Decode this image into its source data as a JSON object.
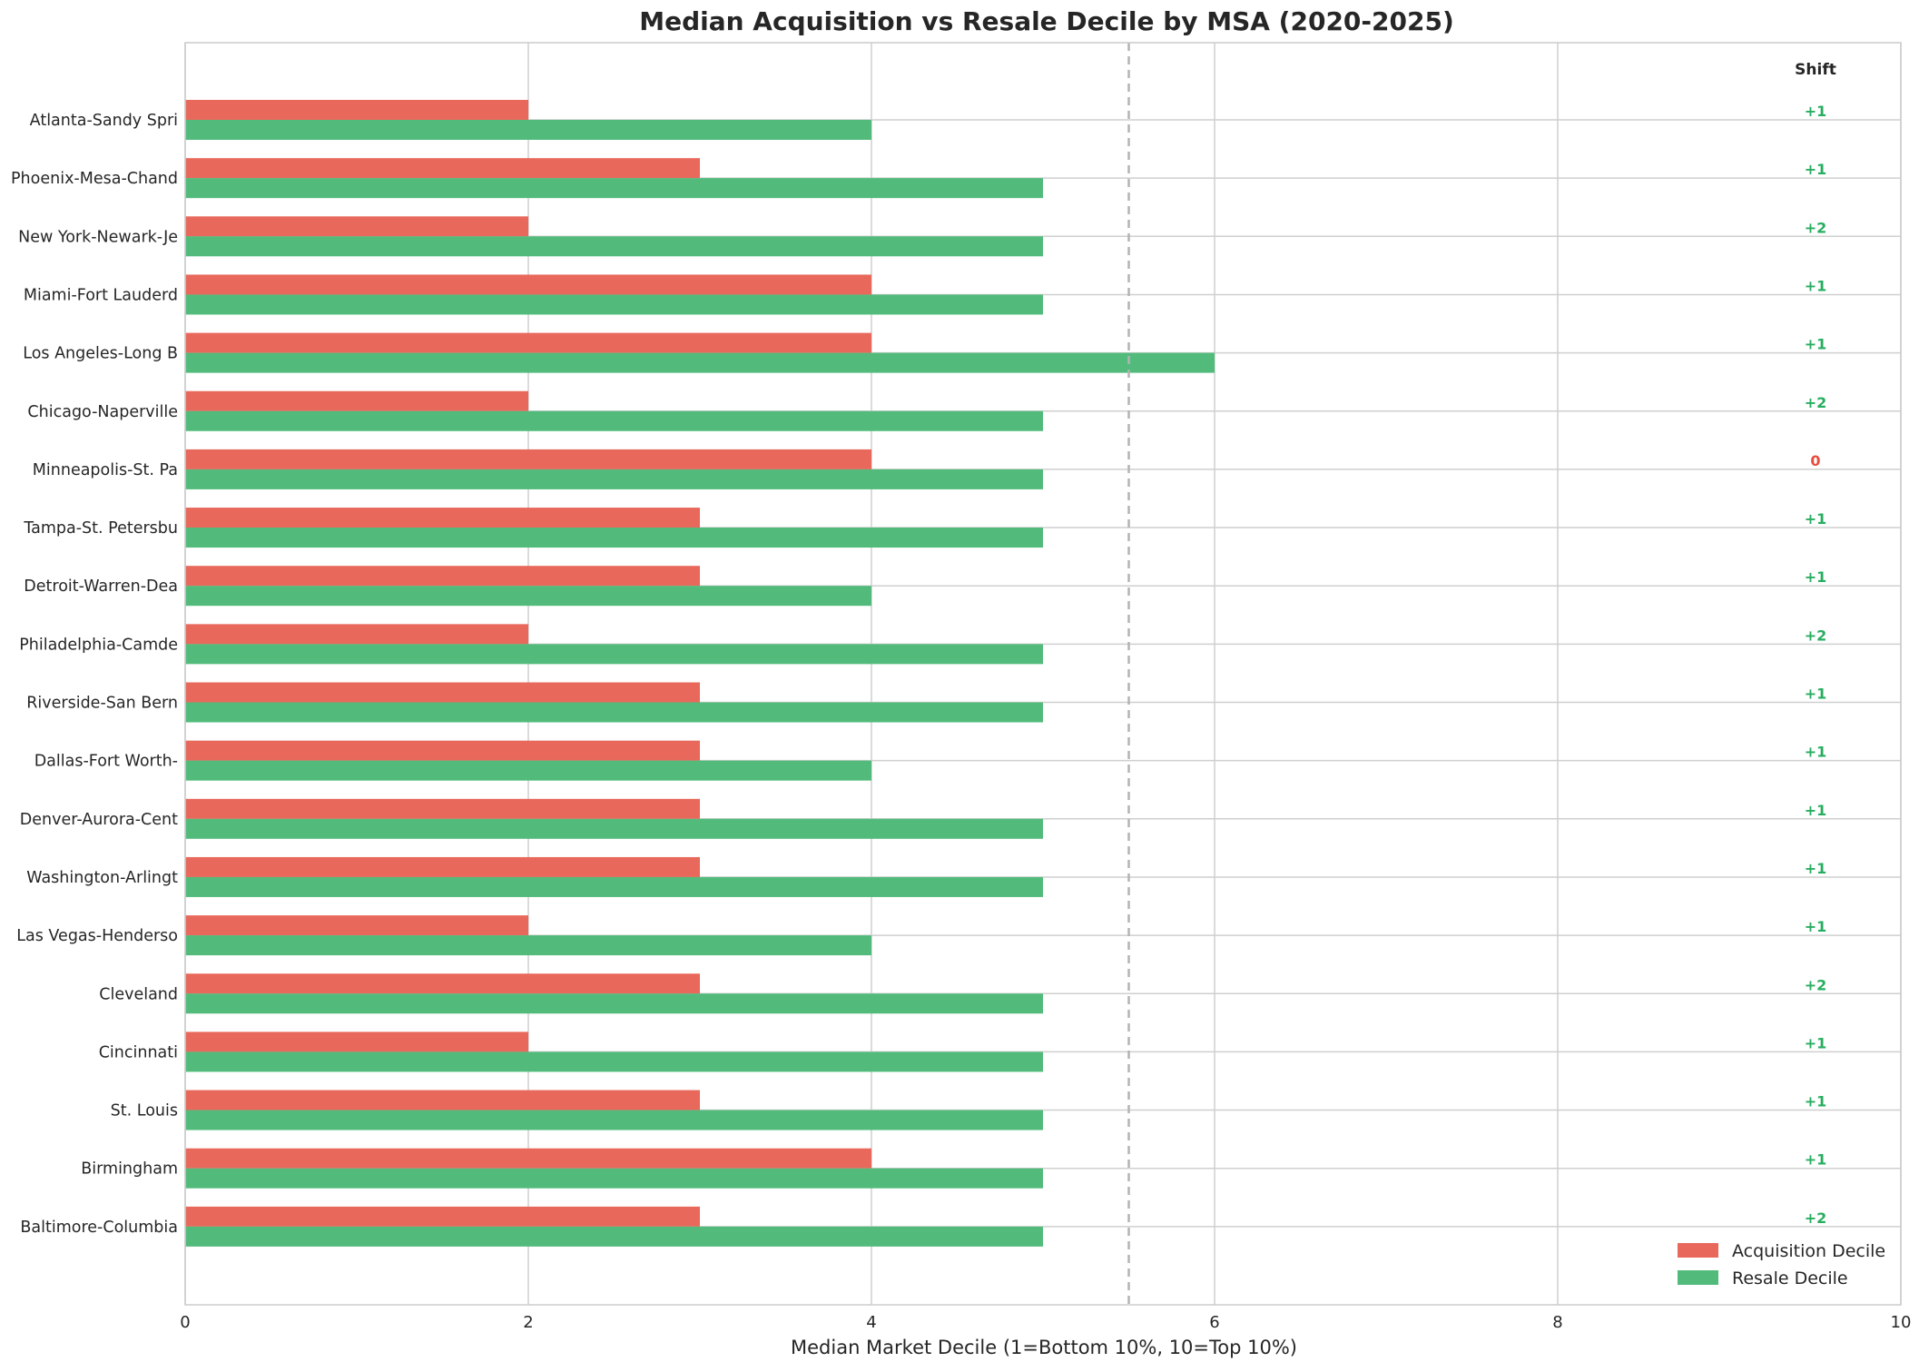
{
  "colors": {
    "acquisition": "#e8695c",
    "resale": "#52bb7b",
    "shift_positive": "#27ae60",
    "shift_zero": "#e74c3c",
    "grid": "#cfcfcf",
    "reference_line": "#b3b3b3"
  },
  "chart_data": {
    "type": "bar",
    "orientation": "horizontal",
    "title": "Median Acquisition vs Resale Decile by MSA (2020-2025)",
    "xlabel": "Median Market Decile (1=Bottom 10%, 10=Top 10%)",
    "ylabel": "",
    "xlim": [
      0,
      10
    ],
    "xticks": [
      0,
      2,
      4,
      6,
      8,
      10
    ],
    "grid": true,
    "reference_line_x": 5.5,
    "legend_position": "lower-right",
    "categories": [
      "Atlanta-Sandy Spri",
      "Phoenix-Mesa-Chand",
      "New York-Newark-Je",
      "Miami-Fort Lauderd",
      "Los Angeles-Long B",
      "Chicago-Naperville",
      "Minneapolis-St. Pa",
      "Tampa-St. Petersbu",
      "Detroit-Warren-Dea",
      "Philadelphia-Camde",
      "Riverside-San Bern",
      "Dallas-Fort Worth-",
      "Denver-Aurora-Cent",
      "Washington-Arlingt",
      "Las Vegas-Henderso",
      "Cleveland",
      "Cincinnati",
      "St. Louis",
      "Birmingham",
      "Baltimore-Columbia"
    ],
    "series": [
      {
        "name": "Acquisition Decile",
        "values": [
          2,
          3,
          2,
          4,
          4,
          2,
          4,
          3,
          3,
          2,
          3,
          3,
          3,
          3,
          2,
          3,
          2,
          3,
          4,
          3
        ]
      },
      {
        "name": "Resale Decile",
        "values": [
          4,
          5,
          5,
          5,
          6,
          5,
          5,
          5,
          4,
          5,
          5,
          4,
          5,
          5,
          4,
          5,
          5,
          5,
          5,
          5
        ]
      }
    ],
    "shift_header": "Shift",
    "shift_labels": [
      "+1",
      "+1",
      "+2",
      "+1",
      "+1",
      "+2",
      "0",
      "+1",
      "+1",
      "+2",
      "+1",
      "+1",
      "+1",
      "+1",
      "+1",
      "+2",
      "+1",
      "+1",
      "+1",
      "+2"
    ]
  }
}
